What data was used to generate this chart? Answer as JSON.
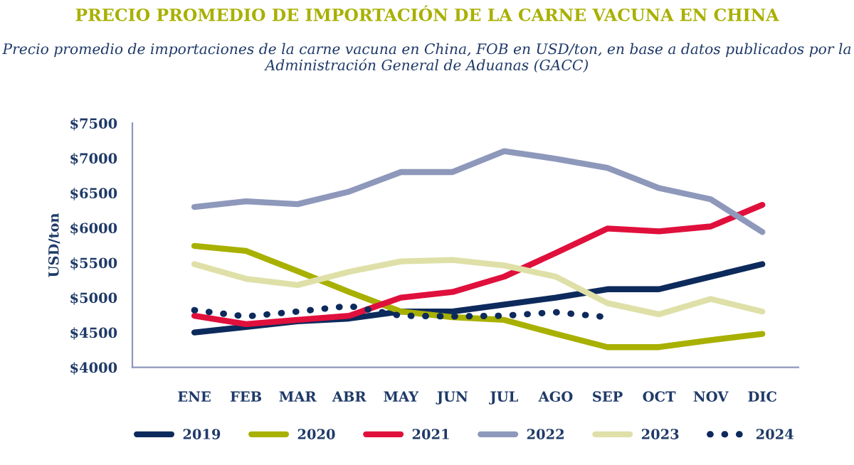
{
  "chart_data": {
    "type": "line",
    "title": "PRECIO PROMEDIO DE IMPORTACIÓN DE LA CARNE VACUNA EN CHINA",
    "subtitle": "Precio promedio de importaciones de la carne vacuna en China, FOB en USD/ton, en base a datos publicados por la Administración General de Aduanas (GACC)",
    "ylabel": "USD/ton",
    "categories": [
      "ENE",
      "FEB",
      "MAR",
      "ABR",
      "MAY",
      "JUN",
      "JUL",
      "AGO",
      "SEP",
      "OCT",
      "NOV",
      "DIC"
    ],
    "series": [
      {
        "name": "2019",
        "color": "#0d2a5c",
        "line_style": "solid",
        "values": [
          4500,
          4580,
          4660,
          4700,
          4800,
          4800,
          4900,
          5000,
          5120,
          5120,
          5300,
          5480
        ]
      },
      {
        "name": "2020",
        "color": "#a8b000",
        "line_style": "solid",
        "values": [
          5740,
          5670,
          5380,
          5080,
          4800,
          4720,
          4680,
          4480,
          4290,
          4290,
          4390,
          4480
        ]
      },
      {
        "name": "2021",
        "color": "#e0103c",
        "line_style": "solid",
        "values": [
          4740,
          4620,
          4680,
          4740,
          5000,
          5080,
          5300,
          5640,
          5990,
          5950,
          6020,
          6330
        ]
      },
      {
        "name": "2022",
        "color": "#8e98bb",
        "line_style": "solid",
        "values": [
          6300,
          6380,
          6340,
          6520,
          6800,
          6800,
          7100,
          6990,
          6860,
          6570,
          6410,
          5940
        ]
      },
      {
        "name": "2023",
        "color": "#dfe0a8",
        "line_style": "solid",
        "values": [
          5480,
          5270,
          5180,
          5370,
          5520,
          5540,
          5460,
          5300,
          4920,
          4760,
          4980,
          4800
        ]
      },
      {
        "name": "2024",
        "color": "#0d2a5c",
        "line_style": "dotted",
        "values": [
          4820,
          4730,
          4800,
          4880,
          4740,
          4730,
          4740,
          4790,
          4720,
          null,
          null,
          null
        ]
      }
    ],
    "ylim": [
      4000,
      7500
    ],
    "yticks": [
      {
        "value": 4000,
        "label": "$4000"
      },
      {
        "value": 4500,
        "label": "$4500"
      },
      {
        "value": 5000,
        "label": "$5000"
      },
      {
        "value": 5500,
        "label": "$5500"
      },
      {
        "value": 6000,
        "label": "$6000"
      },
      {
        "value": 6500,
        "label": "$6500"
      },
      {
        "value": 7000,
        "label": "$7000"
      },
      {
        "value": 7500,
        "label": "$7500"
      }
    ],
    "grid": false,
    "legend": "bottom",
    "marker": "none"
  }
}
